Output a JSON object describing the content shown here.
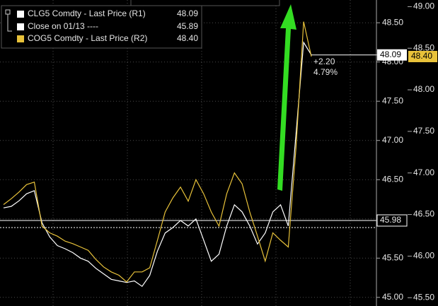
{
  "chart_data": {
    "type": "line",
    "series": [
      {
        "name": "CLG5 Comdty - Last Price (R1)",
        "color": "#ffffff",
        "axis": "y",
        "last_price": 48.09,
        "values": [
          46.14,
          46.16,
          46.23,
          46.32,
          46.36,
          45.95,
          45.77,
          45.66,
          45.62,
          45.57,
          45.5,
          45.46,
          45.37,
          45.3,
          45.23,
          45.21,
          45.19,
          45.21,
          45.14,
          45.28,
          45.59,
          45.82,
          45.89,
          45.98,
          45.91,
          46.0,
          45.73,
          45.46,
          45.55,
          45.91,
          46.18,
          46.09,
          45.91,
          45.68,
          45.82,
          46.09,
          46.18,
          45.91,
          47.08,
          48.25,
          48.09
        ]
      },
      {
        "name": "COG5 Comdty - Last Price (R2)",
        "color": "#e8c23a",
        "axis": "y2",
        "last_price": {
          "value": 48.4,
          "label": "48.40"
        },
        "values": [
          46.62,
          46.69,
          46.77,
          46.86,
          46.89,
          46.36,
          46.28,
          46.24,
          46.18,
          46.15,
          46.11,
          46.07,
          45.96,
          45.87,
          45.81,
          45.77,
          45.69,
          45.81,
          45.81,
          45.86,
          46.19,
          46.53,
          46.7,
          46.83,
          46.66,
          46.92,
          46.75,
          46.53,
          46.36,
          46.75,
          47.0,
          46.87,
          46.53,
          46.24,
          45.94,
          46.28,
          46.19,
          46.11,
          47.3,
          48.82,
          48.4
        ]
      }
    ],
    "reference_lines": [
      {
        "name": "Close on 01/13 ----",
        "value": 45.89,
        "axis": "y"
      },
      {
        "value": 45.98,
        "axis": "y"
      }
    ],
    "change": {
      "value": 2.2,
      "label": "+2.20"
    },
    "change_pct": {
      "value": 4.79,
      "label": "4.79%"
    },
    "ylim": [
      44.89,
      48.79
    ],
    "yticks": [
      {
        "value": 45,
        "label": "45.00"
      },
      {
        "value": 45.5,
        "label": "45.50"
      },
      {
        "value": 46,
        "label": "46.00"
      },
      {
        "value": 46.5,
        "label": "46.50"
      },
      {
        "value": 47,
        "label": "47.00"
      },
      {
        "value": 47.5,
        "label": "47.50"
      },
      {
        "value": 48,
        "label": "48.00"
      },
      {
        "value": 48.5,
        "label": "48.50"
      }
    ],
    "y2lim": [
      45.4,
      49.08
    ],
    "y2ticks": [
      {
        "value": 45.5,
        "label": "45.50"
      },
      {
        "value": 46,
        "label": "46.00"
      },
      {
        "value": 46.5,
        "label": "46.50"
      },
      {
        "value": 47,
        "label": "47.00"
      },
      {
        "value": 47.5,
        "label": "47.50"
      },
      {
        "value": 48,
        "label": "48.00"
      },
      {
        "value": 48.5,
        "label": "48.50"
      },
      {
        "value": 49,
        "label": "49.00"
      }
    ],
    "grid": true
  }
}
